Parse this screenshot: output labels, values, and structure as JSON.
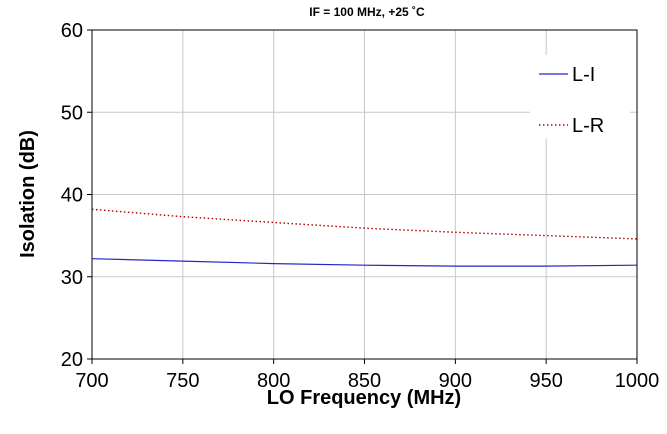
{
  "chart_data": {
    "type": "line",
    "subtitle": "IF = 100 MHz, +25 ˚C",
    "xlabel": "LO Frequency (MHz)",
    "ylabel": "Isolation (dB)",
    "xlim": [
      700,
      1000
    ],
    "ylim": [
      20,
      60
    ],
    "x_ticks": [
      700,
      750,
      800,
      850,
      900,
      950,
      1000
    ],
    "y_ticks": [
      20,
      30,
      40,
      50,
      60
    ],
    "grid": true,
    "legend_position": "top-right",
    "x": [
      700,
      750,
      800,
      850,
      900,
      950,
      1000
    ],
    "series": [
      {
        "name": "L-I",
        "values": [
          32.2,
          31.9,
          31.6,
          31.4,
          31.3,
          31.3,
          31.4
        ],
        "color": "#2626c8",
        "style": "solid"
      },
      {
        "name": "L-R",
        "values": [
          38.2,
          37.3,
          36.6,
          35.9,
          35.4,
          35.0,
          34.6
        ],
        "color": "#b00000",
        "style": "dotted"
      }
    ]
  }
}
